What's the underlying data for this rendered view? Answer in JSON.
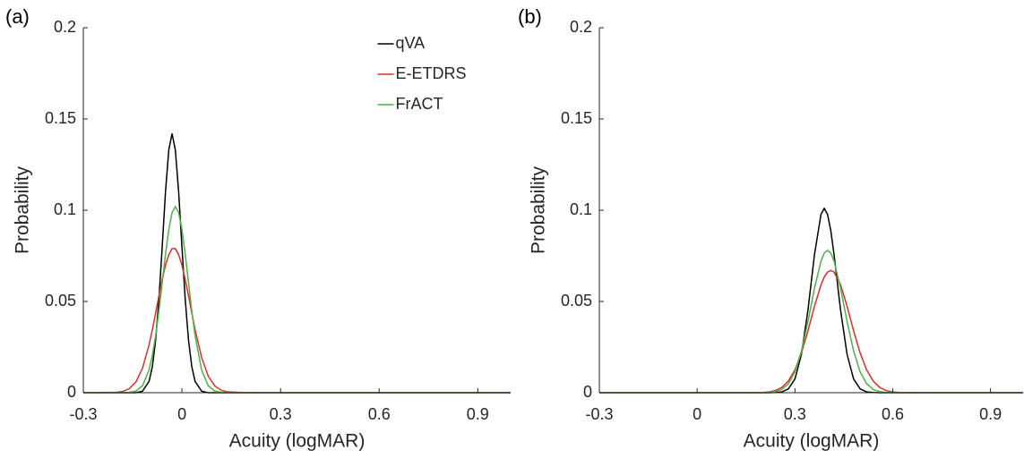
{
  "chart_data": [
    {
      "type": "line",
      "panel_label": "(a)",
      "xlabel": "Acuity (logMAR)",
      "ylabel": "Probability",
      "x": [
        -0.3,
        -0.2,
        -0.18,
        -0.16,
        -0.14,
        -0.12,
        -0.1,
        -0.09,
        -0.08,
        -0.07,
        -0.06,
        -0.05,
        -0.04,
        -0.03,
        -0.02,
        -0.01,
        0,
        0.01,
        0.02,
        0.03,
        0.04,
        0.06,
        0.08,
        0.1,
        0.12,
        0.14,
        0.2,
        1.0
      ],
      "series": [
        {
          "name": "qVA",
          "color": "#000000",
          "values": [
            0,
            0,
            0,
            0,
            0,
            0.0008,
            0.0062,
            0.0143,
            0.0288,
            0.0512,
            0.08,
            0.11,
            0.133,
            0.142,
            0.133,
            0.11,
            0.08,
            0.0512,
            0.0288,
            0.0143,
            0.0062,
            0.0008,
            0,
            0,
            0,
            0,
            0,
            0
          ]
        },
        {
          "name": "E-ETDRS",
          "color": "#d9302a",
          "values": [
            0,
            0.0002,
            0.0007,
            0.0022,
            0.0059,
            0.0134,
            0.0262,
            0.0345,
            0.0437,
            0.0531,
            0.0621,
            0.0699,
            0.0756,
            0.079,
            0.079,
            0.0756,
            0.0699,
            0.0621,
            0.0531,
            0.0437,
            0.0345,
            0.0192,
            0.0091,
            0.0037,
            0.0013,
            0.0004,
            0,
            0
          ]
        },
        {
          "name": "FrACT",
          "color": "#4fb04a",
          "values": [
            0,
            0,
            0,
            0.0002,
            0.0009,
            0.0038,
            0.0124,
            0.0204,
            0.0312,
            0.0449,
            0.0603,
            0.0759,
            0.0894,
            0.0987,
            0.102,
            0.0987,
            0.0894,
            0.0759,
            0.0603,
            0.0449,
            0.0312,
            0.0124,
            0.0038,
            0.0009,
            0.0002,
            0,
            0,
            0
          ]
        }
      ],
      "xlim": [
        -0.3,
        1.0
      ],
      "xticks": [
        -0.3,
        0,
        0.3,
        0.6,
        0.9
      ],
      "ylim": [
        0,
        0.2
      ],
      "yticks": [
        0,
        0.05,
        0.1,
        0.15,
        0.2
      ],
      "legend": "upper center"
    },
    {
      "type": "line",
      "panel_label": "(b)",
      "xlabel": "Acuity (logMAR)",
      "ylabel": "Probability",
      "x": [
        -0.3,
        0.1,
        0.16,
        0.2,
        0.22,
        0.24,
        0.26,
        0.28,
        0.3,
        0.32,
        0.34,
        0.36,
        0.38,
        0.39,
        0.4,
        0.41,
        0.42,
        0.44,
        0.46,
        0.48,
        0.5,
        0.52,
        0.54,
        0.56,
        0.58,
        0.6,
        0.62,
        0.64,
        0.7,
        1.0
      ],
      "series": [
        {
          "name": "qVA",
          "color": "#000000",
          "values": [
            0,
            0,
            0,
            0,
            0,
            0.0001,
            0.0004,
            0.0021,
            0.0075,
            0.021,
            0.0453,
            0.0757,
            0.0978,
            0.101,
            0.0978,
            0.0889,
            0.0757,
            0.0453,
            0.021,
            0.0075,
            0.0021,
            0.0004,
            0.0001,
            0,
            0,
            0,
            0,
            0,
            0,
            0
          ]
        },
        {
          "name": "E-ETDRS",
          "color": "#d9302a",
          "values": [
            0,
            0,
            0,
            0.0001,
            0.0004,
            0.0012,
            0.0029,
            0.0064,
            0.0125,
            0.0218,
            0.0339,
            0.0474,
            0.0591,
            0.0634,
            0.0661,
            0.067,
            0.0661,
            0.0591,
            0.0474,
            0.0339,
            0.0218,
            0.0125,
            0.0064,
            0.0029,
            0.0012,
            0.0004,
            0.0001,
            0,
            0,
            0
          ]
        },
        {
          "name": "FrACT",
          "color": "#4fb04a",
          "values": [
            0,
            0,
            0,
            0,
            0.0002,
            0.0006,
            0.0018,
            0.0049,
            0.0114,
            0.0228,
            0.039,
            0.0573,
            0.0722,
            0.0765,
            0.078,
            0.0765,
            0.0722,
            0.0573,
            0.039,
            0.0228,
            0.0114,
            0.0049,
            0.0018,
            0.0006,
            0.0002,
            0,
            0,
            0,
            0,
            0
          ]
        }
      ],
      "xlim": [
        -0.3,
        1.0
      ],
      "xticks": [
        -0.3,
        0,
        0.3,
        0.6,
        0.9
      ],
      "ylim": [
        0,
        0.2
      ],
      "yticks": [
        0,
        0.05,
        0.1,
        0.15,
        0.2
      ]
    }
  ]
}
